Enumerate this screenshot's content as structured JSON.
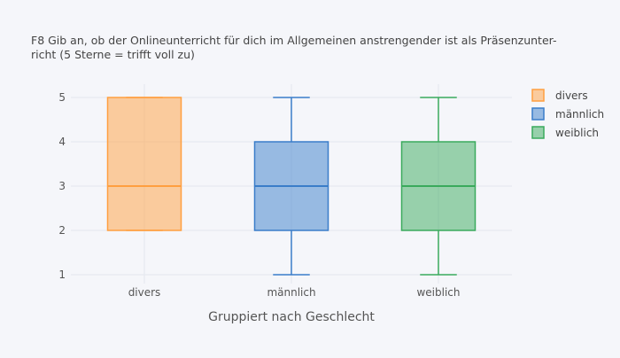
{
  "chart_data": {
    "type": "box",
    "title_line1": "F8 Gib an, ob der Onlineunterricht für dich im Allgemeinen anstrengender ist als Präsenzunter-",
    "title_line2": "richt (5 Sterne = trifft voll zu)",
    "xlabel": "Gruppiert nach Geschlecht",
    "ylabel": "",
    "ylim": [
      0.8,
      5.2
    ],
    "yticks": [
      1,
      2,
      3,
      4,
      5
    ],
    "grid": true,
    "legend_position": "top-right",
    "categories": [
      "divers",
      "männlich",
      "weiblich"
    ],
    "series": [
      {
        "name": "divers",
        "min": 2,
        "q1": 2,
        "median": 3,
        "q3": 5,
        "max": 5,
        "color": "#ff9f40"
      },
      {
        "name": "männlich",
        "min": 1,
        "q1": 2,
        "median": 3,
        "q3": 4,
        "max": 5,
        "color": "#3a7dc9"
      },
      {
        "name": "weiblich",
        "min": 1,
        "q1": 2,
        "median": 3,
        "q3": 4,
        "max": 5,
        "color": "#3aaa5c"
      }
    ]
  }
}
